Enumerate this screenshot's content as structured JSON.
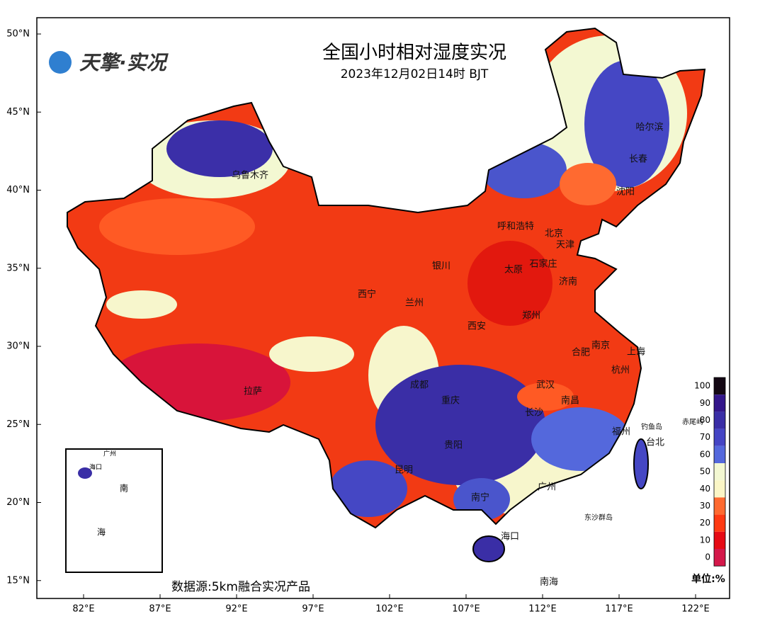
{
  "header": {
    "logo": "天擎·实况",
    "title": "全国小时相对湿度实况",
    "subtitle": "2023年12月02日14时 BJT"
  },
  "lat_ticks": [
    {
      "value": 50,
      "label": "50°N"
    },
    {
      "value": 45,
      "label": "45°N"
    },
    {
      "value": 40,
      "label": "40°N"
    },
    {
      "value": 35,
      "label": "35°N"
    },
    {
      "value": 30,
      "label": "30°N"
    },
    {
      "value": 25,
      "label": "25°N"
    },
    {
      "value": 20,
      "label": "20°N"
    },
    {
      "value": 15,
      "label": "15°N"
    }
  ],
  "lon_ticks": [
    {
      "value": 82,
      "label": "82°E"
    },
    {
      "value": 87,
      "label": "87°E"
    },
    {
      "value": 92,
      "label": "92°E"
    },
    {
      "value": 97,
      "label": "97°E"
    },
    {
      "value": 102,
      "label": "102°E"
    },
    {
      "value": 107,
      "label": "107°E"
    },
    {
      "value": 112,
      "label": "112°E"
    },
    {
      "value": 117,
      "label": "117°E"
    },
    {
      "value": 122,
      "label": "122°E"
    }
  ],
  "cities": [
    "乌鲁木齐",
    "哈尔滨",
    "长春",
    "沈阳",
    "呼和浩特",
    "北京",
    "天津",
    "银川",
    "太原",
    "石家庄",
    "济南",
    "西宁",
    "兰州",
    "郑州",
    "西安",
    "南京",
    "合肥",
    "上海",
    "杭州",
    "成都",
    "武汉",
    "拉萨",
    "重庆",
    "南昌",
    "长沙",
    "福州",
    "台北",
    "贵阳",
    "昆明",
    "广州",
    "南宁",
    "海口",
    "钓鱼岛",
    "赤尾屿",
    "东沙群岛",
    "南海"
  ],
  "inset": {
    "labels": [
      "南",
      "海",
      "广州",
      "海口"
    ]
  },
  "colorbar": {
    "ticks": [
      100,
      90,
      80,
      70,
      60,
      50,
      40,
      30,
      20,
      10,
      0
    ],
    "colors": [
      "#140814",
      "#33168a",
      "#3a2ea6",
      "#4545c4",
      "#5468dc",
      "#f3f8d2",
      "#fbf6c6",
      "#ff6a30",
      "#ff3a12",
      "#e60b14",
      "#d4184a"
    ],
    "unit": "单位:%"
  },
  "footer": {
    "source": "数据源:5km融合实况产品"
  }
}
